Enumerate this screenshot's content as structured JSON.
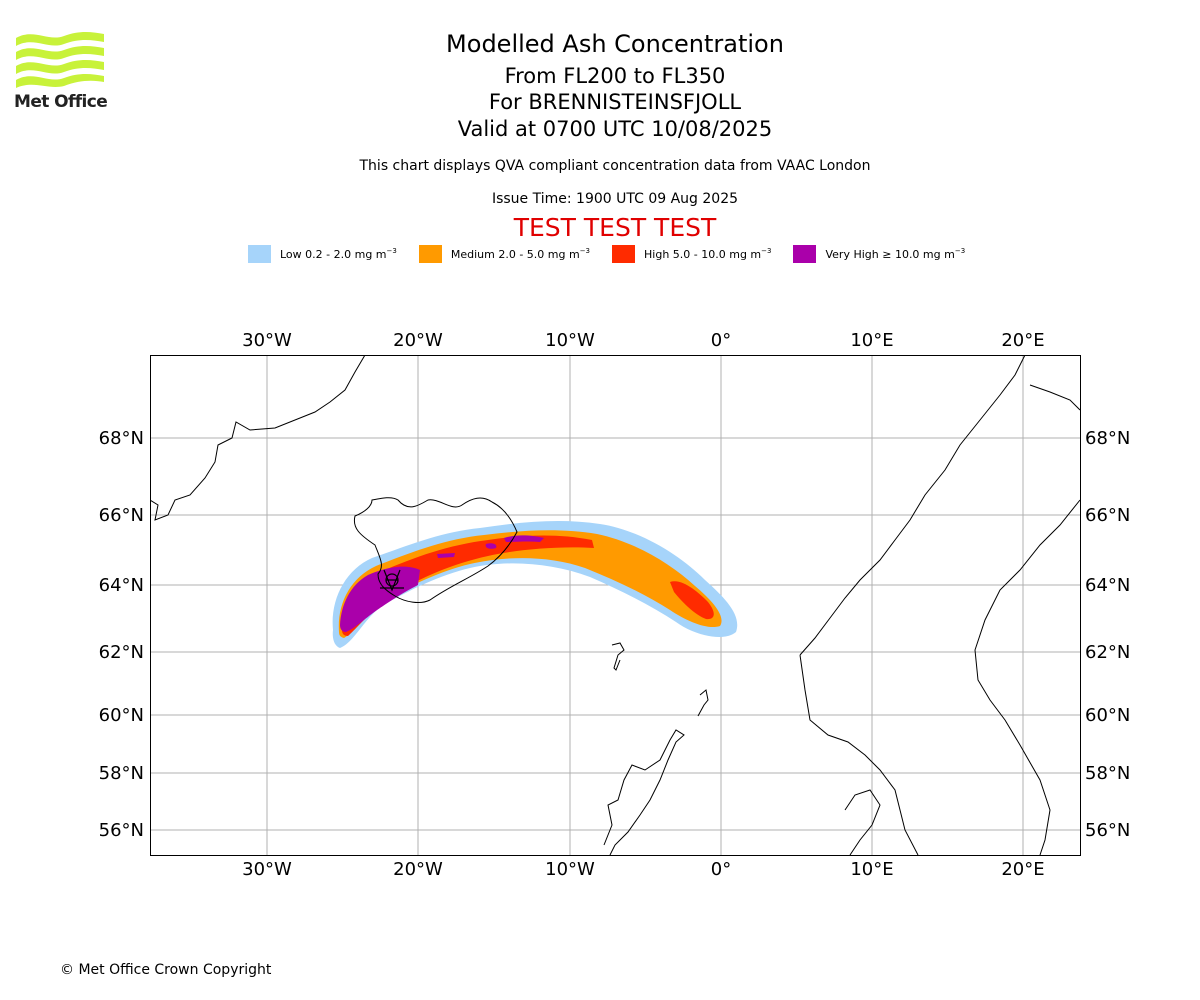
{
  "logo": {
    "name": "Met Office"
  },
  "header": {
    "title": "Modelled Ash Concentration",
    "levels": "From FL200 to FL350",
    "volcano": "For BRENNISTEINSFJOLL",
    "valid": "Valid at 0700 UTC 10/08/2025",
    "description": "This chart displays QVA compliant concentration data from VAAC London",
    "issue": "Issue Time: 1900 UTC 09 Aug 2025",
    "test_banner": "TEST TEST TEST"
  },
  "legend": [
    {
      "label": "Low 0.2 - 2.0 mg m",
      "color": "#a6d4fa"
    },
    {
      "label": "Medium 2.0 - 5.0 mg m",
      "color": "#ff9a00"
    },
    {
      "label": "High 5.0 - 10.0 mg m",
      "color": "#ff2b00"
    },
    {
      "label": "Very High  ≥  10.0 mg m",
      "color": "#aa00aa"
    }
  ],
  "legend_unit_exponent": "−3",
  "map": {
    "lon_ticks": [
      "30°W",
      "20°W",
      "10°W",
      "0°",
      "10°E",
      "20°E"
    ],
    "lat_ticks": [
      "68°N",
      "66°N",
      "64°N",
      "62°N",
      "60°N",
      "58°N",
      "56°N"
    ]
  },
  "footer": {
    "copyright": "© Met Office Crown Copyright"
  }
}
